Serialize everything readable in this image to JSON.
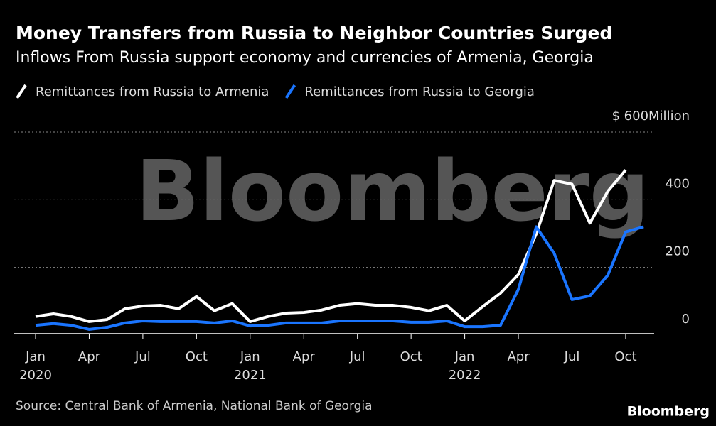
{
  "chart_data": {
    "type": "line",
    "title": "Money Transfers from Russia to Neighbor Countries Surged",
    "subtitle": "Inflows From Russia support economy and currencies of Armenia, Georgia",
    "x": [
      "2020-01",
      "2020-02",
      "2020-03",
      "2020-04",
      "2020-05",
      "2020-06",
      "2020-07",
      "2020-08",
      "2020-09",
      "2020-10",
      "2020-11",
      "2020-12",
      "2021-01",
      "2021-02",
      "2021-03",
      "2021-04",
      "2021-05",
      "2021-06",
      "2021-07",
      "2021-08",
      "2021-09",
      "2021-10",
      "2021-11",
      "2021-12",
      "2022-01",
      "2022-02",
      "2022-03",
      "2022-04",
      "2022-05",
      "2022-06",
      "2022-07",
      "2022-08",
      "2022-09",
      "2022-10",
      "2022-11"
    ],
    "series": [
      {
        "name": "Remittances from Russia to Armenia",
        "color": "#ffffff",
        "values": [
          55,
          63,
          55,
          40,
          46,
          78,
          86,
          88,
          78,
          114,
          72,
          93,
          40,
          55,
          65,
          67,
          74,
          88,
          93,
          88,
          88,
          82,
          72,
          88,
          42,
          84,
          124,
          179,
          299,
          457,
          446,
          331,
          425,
          488,
          null
        ]
      },
      {
        "name": "Remittances from Russia to Georgia",
        "color": "#1a75ff",
        "values": [
          29,
          34,
          29,
          17,
          23,
          36,
          42,
          40,
          40,
          40,
          36,
          42,
          27,
          29,
          36,
          36,
          36,
          42,
          42,
          42,
          42,
          38,
          38,
          42,
          25,
          25,
          29,
          135,
          320,
          242,
          105,
          116,
          177,
          305,
          320
        ]
      }
    ],
    "xticks": [
      {
        "value": "2020-01",
        "label": "Jan",
        "year": "2020"
      },
      {
        "value": "2020-04",
        "label": "Apr"
      },
      {
        "value": "2020-07",
        "label": "Jul"
      },
      {
        "value": "2020-10",
        "label": "Oct"
      },
      {
        "value": "2021-01",
        "label": "Jan",
        "year": "2021"
      },
      {
        "value": "2021-04",
        "label": "Apr"
      },
      {
        "value": "2021-07",
        "label": "Jul"
      },
      {
        "value": "2021-10",
        "label": "Oct"
      },
      {
        "value": "2022-01",
        "label": "Jan",
        "year": "2022"
      },
      {
        "value": "2022-04",
        "label": "Apr"
      },
      {
        "value": "2022-07",
        "label": "Jul"
      },
      {
        "value": "2022-10",
        "label": "Oct"
      }
    ],
    "ylim": [
      0,
      600
    ],
    "yticks": [
      0,
      200,
      400,
      {
        "value": 600,
        "label": "$ 600Million"
      }
    ],
    "grid": true,
    "watermark": "Bloomberg",
    "source": "Source: Central Bank of Armenia, National Bank of Georgia",
    "logo": "Bloomberg"
  }
}
